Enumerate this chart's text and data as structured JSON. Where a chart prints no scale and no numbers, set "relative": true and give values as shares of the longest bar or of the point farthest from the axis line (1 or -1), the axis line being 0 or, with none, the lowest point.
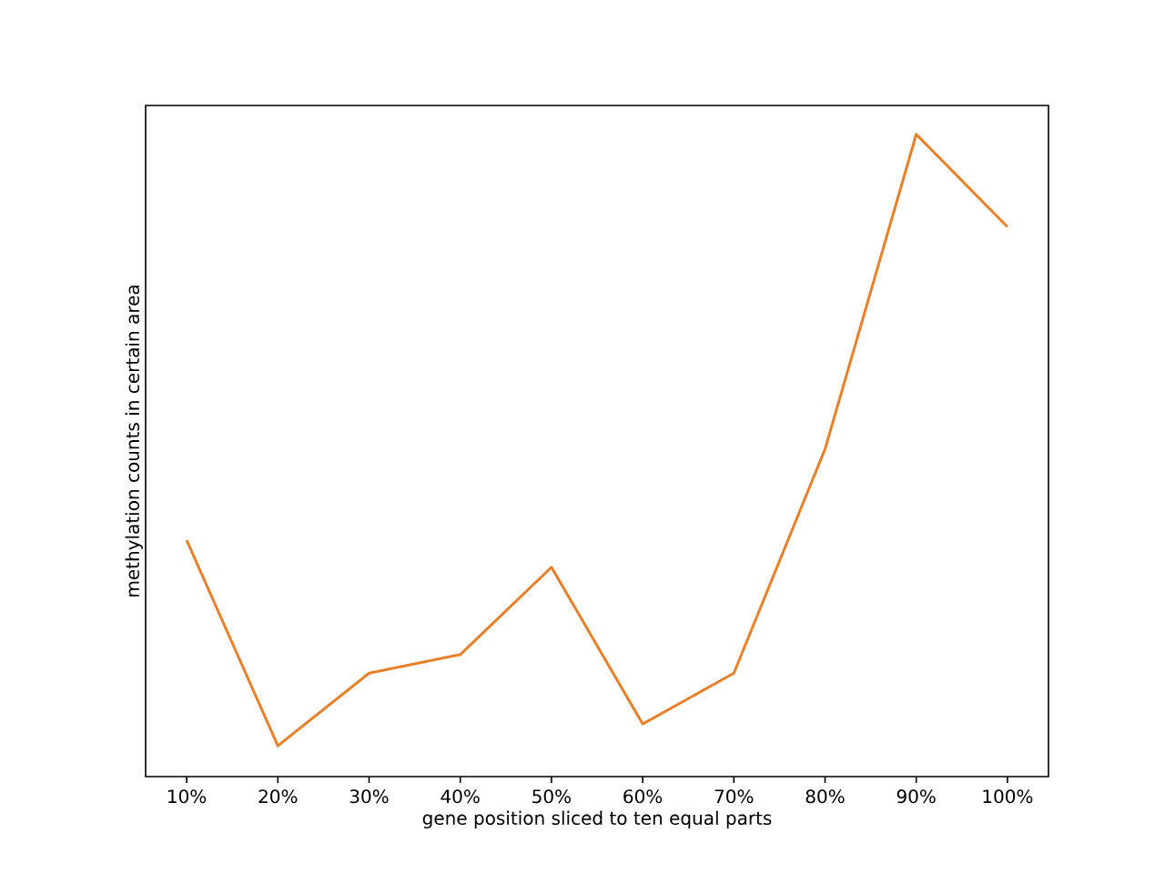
{
  "chart_data": {
    "type": "line",
    "relative": true,
    "xlabel": "gene position sliced to ten equal parts",
    "ylabel": "methylation counts in certain area",
    "categories": [
      "10%",
      "20%",
      "30%",
      "40%",
      "50%",
      "60%",
      "70%",
      "80%",
      "90%",
      "100%"
    ],
    "color": "#e8802a",
    "values": [
      0.368,
      0.048,
      0.161,
      0.19,
      0.326,
      0.082,
      0.161,
      0.51,
      1,
      0.856
    ]
  }
}
